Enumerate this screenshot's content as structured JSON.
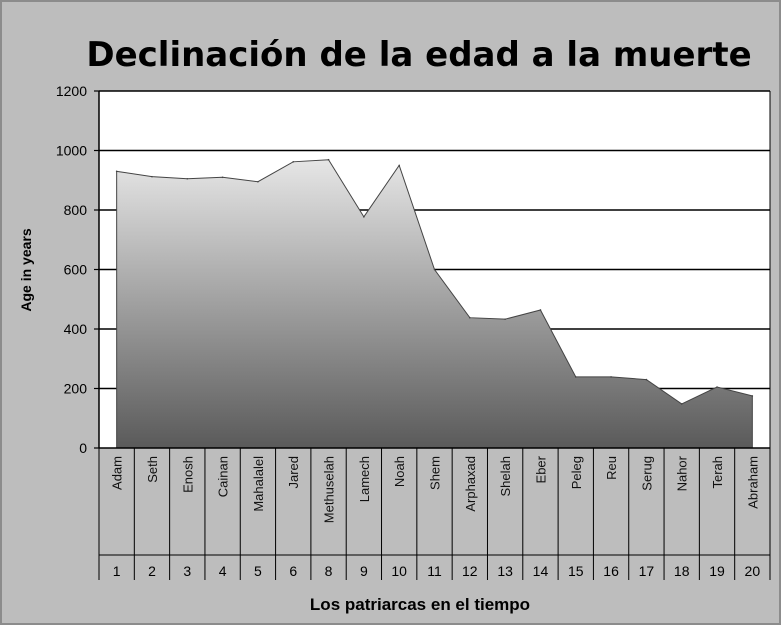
{
  "chart_data": {
    "type": "area",
    "title": "Declinación de la edad a la muerte",
    "xlabel": "Los patriarcas en el tiempo",
    "ylabel": "Age in years",
    "ylim": [
      0,
      1200
    ],
    "yticks": [
      0,
      200,
      400,
      600,
      800,
      1000,
      1200
    ],
    "grid": true,
    "legend": "none",
    "fill_gradient": [
      "#e6e6e6",
      "#5a5a5a"
    ],
    "categories": [
      {
        "name": "Adam",
        "number": "1",
        "value": 930
      },
      {
        "name": "Seth",
        "number": "2",
        "value": 912
      },
      {
        "name": "Enosh",
        "number": "3",
        "value": 905
      },
      {
        "name": "Cainan",
        "number": "4",
        "value": 910
      },
      {
        "name": "Mahalalel",
        "number": "5",
        "value": 895
      },
      {
        "name": "Jared",
        "number": "6",
        "value": 962
      },
      {
        "name": "Methuselah",
        "number": "8",
        "value": 969
      },
      {
        "name": "Lamech",
        "number": "9",
        "value": 777
      },
      {
        "name": "Noah",
        "number": "10",
        "value": 950
      },
      {
        "name": "Shem",
        "number": "11",
        "value": 600
      },
      {
        "name": "Arphaxad",
        "number": "12",
        "value": 438
      },
      {
        "name": "Shelah",
        "number": "13",
        "value": 433
      },
      {
        "name": "Eber",
        "number": "14",
        "value": 464
      },
      {
        "name": "Peleg",
        "number": "15",
        "value": 239
      },
      {
        "name": "Reu",
        "number": "16",
        "value": 239
      },
      {
        "name": "Serug",
        "number": "17",
        "value": 230
      },
      {
        "name": "Nahor",
        "number": "18",
        "value": 148
      },
      {
        "name": "Terah",
        "number": "19",
        "value": 205
      },
      {
        "name": "Abraham",
        "number": "20",
        "value": 175
      }
    ]
  }
}
